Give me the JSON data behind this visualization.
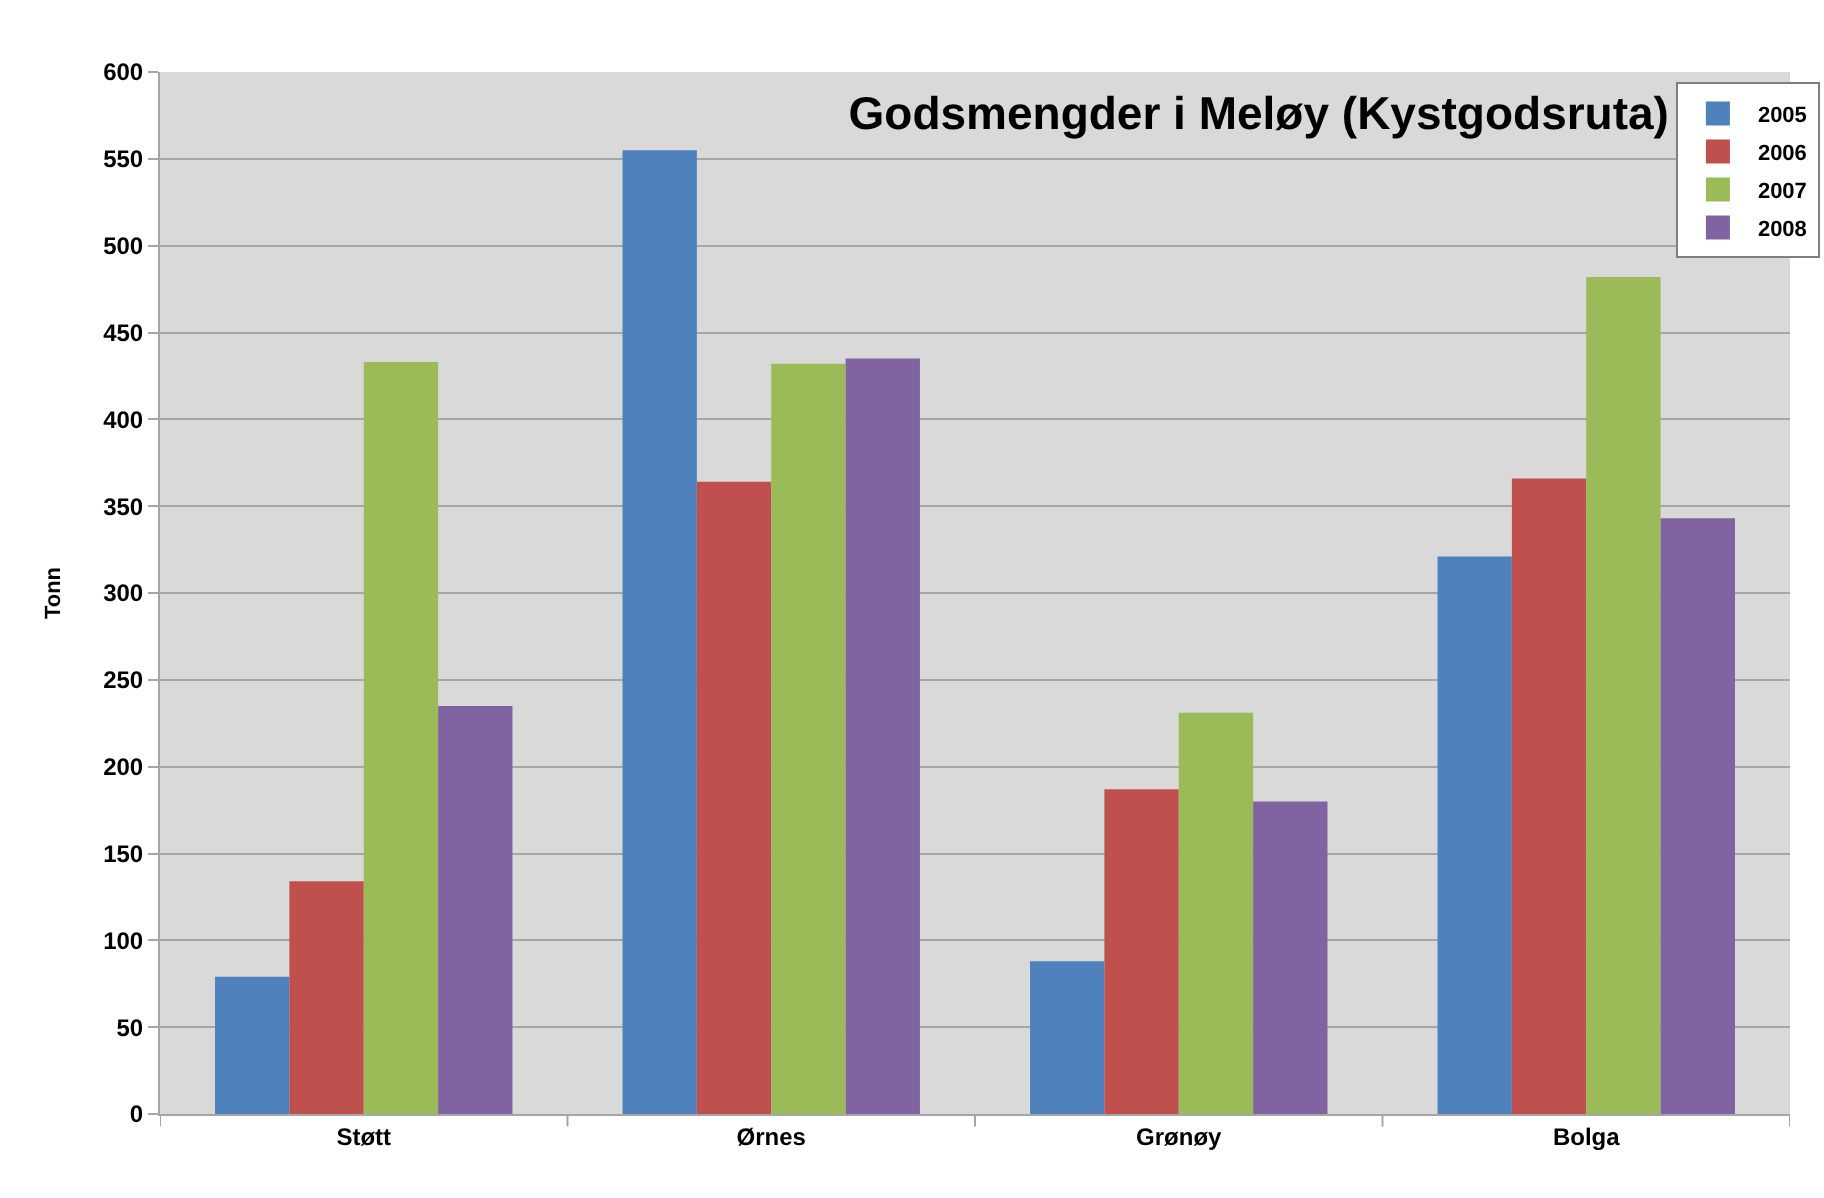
{
  "chart_data": {
    "type": "bar",
    "title": "Godsmengder i Meløy (Kystgodsruta)",
    "ylabel": "Tonn",
    "categories": [
      "Støtt",
      "Ørnes",
      "Grønøy",
      "Bolga"
    ],
    "series": [
      {
        "name": "2005",
        "color": "#4f81bd",
        "values": [
          79,
          555,
          88,
          321
        ]
      },
      {
        "name": "2006",
        "color": "#c0504d",
        "values": [
          134,
          364,
          187,
          366
        ]
      },
      {
        "name": "2007",
        "color": "#9bbb59",
        "values": [
          433,
          432,
          231,
          482
        ]
      },
      {
        "name": "2008",
        "color": "#8064a2",
        "values": [
          235,
          435,
          180,
          343
        ]
      }
    ],
    "ylim": [
      0,
      600
    ],
    "yticks": [
      0,
      50,
      100,
      150,
      200,
      250,
      300,
      350,
      400,
      450,
      500,
      550,
      600
    ],
    "grid": "y",
    "legend": "top right"
  }
}
